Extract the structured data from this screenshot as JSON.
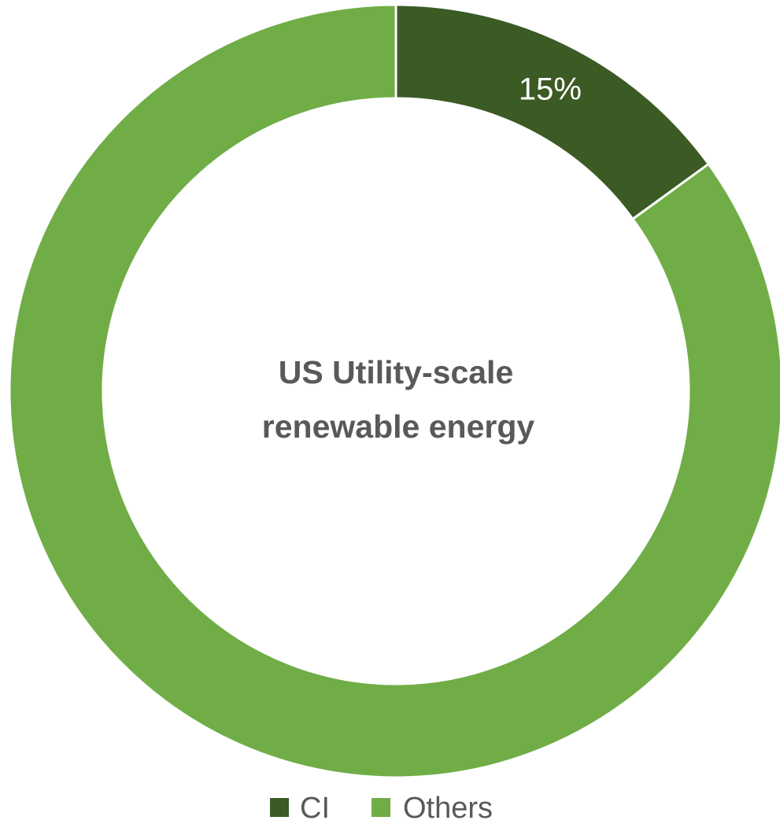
{
  "chart_data": {
    "type": "pie",
    "variant": "donut",
    "center_title": [
      "US Utility-scale",
      "renewable energy"
    ],
    "slices": [
      {
        "name": "CI",
        "value": 15,
        "label": "15%",
        "color": "#3b5a24"
      },
      {
        "name": "Others",
        "value": 85,
        "label": "",
        "color": "#70ad47"
      }
    ],
    "legend": {
      "placement": "bottom",
      "entries": [
        "CI",
        "Others"
      ]
    }
  }
}
